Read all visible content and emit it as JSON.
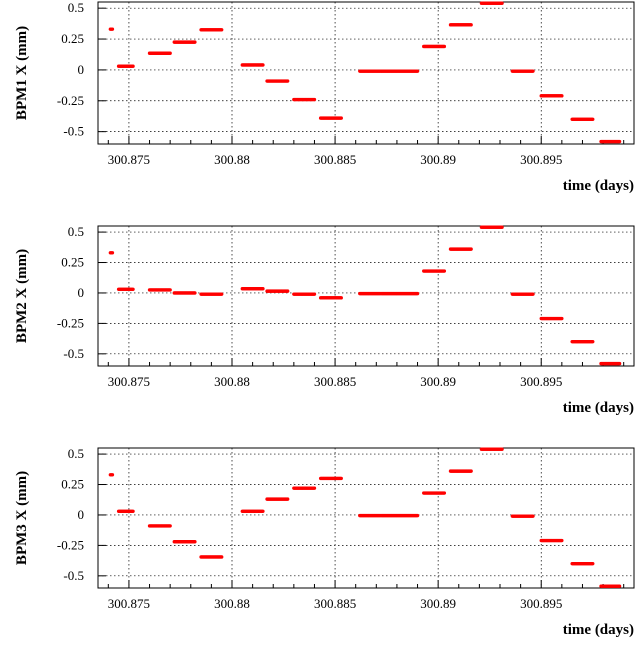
{
  "colors": {
    "points": "#ff0000",
    "axes": "#000000",
    "background": "#ffffff"
  },
  "chart_data": [
    {
      "type": "scatter",
      "ylabel": "BPM1 X (mm)",
      "xlabel": "time (days)",
      "xlim": [
        300.8735,
        300.8995
      ],
      "ylim": [
        -0.6,
        0.55
      ],
      "grid": true,
      "x_ticks": [
        300.875,
        300.88,
        300.885,
        300.89,
        300.895
      ],
      "x_tick_labels": [
        "300.875",
        "300.88",
        "300.885",
        "300.89",
        "300.895"
      ],
      "y_ticks": [
        0.5,
        0.25,
        0,
        -0.25,
        -0.5
      ],
      "y_tick_labels": [
        "0.5",
        "0.25",
        "0",
        "-0.25",
        "-0.5"
      ],
      "segments": [
        {
          "x_start": 300.8741,
          "x_end": 300.8742,
          "y": 0.33
        },
        {
          "x_start": 300.8745,
          "x_end": 300.8752,
          "y": 0.03
        },
        {
          "x_start": 300.876,
          "x_end": 300.877,
          "y": 0.135
        },
        {
          "x_start": 300.8772,
          "x_end": 300.8782,
          "y": 0.225
        },
        {
          "x_start": 300.8785,
          "x_end": 300.8795,
          "y": 0.325
        },
        {
          "x_start": 300.8805,
          "x_end": 300.8815,
          "y": 0.04
        },
        {
          "x_start": 300.8817,
          "x_end": 300.8827,
          "y": -0.09
        },
        {
          "x_start": 300.883,
          "x_end": 300.884,
          "y": -0.24
        },
        {
          "x_start": 300.8843,
          "x_end": 300.8853,
          "y": -0.39
        },
        {
          "x_start": 300.8862,
          "x_end": 300.889,
          "y": -0.01
        },
        {
          "x_start": 300.8893,
          "x_end": 300.8903,
          "y": 0.19
        },
        {
          "x_start": 300.8906,
          "x_end": 300.8916,
          "y": 0.365
        },
        {
          "x_start": 300.8921,
          "x_end": 300.8931,
          "y": 0.54
        },
        {
          "x_start": 300.8936,
          "x_end": 300.8946,
          "y": -0.01
        },
        {
          "x_start": 300.895,
          "x_end": 300.896,
          "y": -0.21
        },
        {
          "x_start": 300.8965,
          "x_end": 300.8975,
          "y": -0.4
        },
        {
          "x_start": 300.8979,
          "x_end": 300.8988,
          "y": -0.58
        }
      ]
    },
    {
      "type": "scatter",
      "ylabel": "BPM2 X (mm)",
      "xlabel": "time (days)",
      "xlim": [
        300.8735,
        300.8995
      ],
      "ylim": [
        -0.6,
        0.55
      ],
      "grid": true,
      "x_ticks": [
        300.875,
        300.88,
        300.885,
        300.89,
        300.895
      ],
      "x_tick_labels": [
        "300.875",
        "300.88",
        "300.885",
        "300.89",
        "300.895"
      ],
      "y_ticks": [
        0.5,
        0.25,
        0,
        -0.25,
        -0.5
      ],
      "y_tick_labels": [
        "0.5",
        "0.25",
        "0",
        "-0.25",
        "-0.5"
      ],
      "segments": [
        {
          "x_start": 300.8741,
          "x_end": 300.8742,
          "y": 0.33
        },
        {
          "x_start": 300.8745,
          "x_end": 300.8752,
          "y": 0.03
        },
        {
          "x_start": 300.876,
          "x_end": 300.877,
          "y": 0.025
        },
        {
          "x_start": 300.8772,
          "x_end": 300.8782,
          "y": 0.0
        },
        {
          "x_start": 300.8785,
          "x_end": 300.8795,
          "y": -0.01
        },
        {
          "x_start": 300.8805,
          "x_end": 300.8815,
          "y": 0.035
        },
        {
          "x_start": 300.8817,
          "x_end": 300.8827,
          "y": 0.015
        },
        {
          "x_start": 300.883,
          "x_end": 300.884,
          "y": -0.01
        },
        {
          "x_start": 300.8843,
          "x_end": 300.8853,
          "y": -0.04
        },
        {
          "x_start": 300.8862,
          "x_end": 300.889,
          "y": -0.005
        },
        {
          "x_start": 300.8893,
          "x_end": 300.8903,
          "y": 0.18
        },
        {
          "x_start": 300.8906,
          "x_end": 300.8916,
          "y": 0.36
        },
        {
          "x_start": 300.8921,
          "x_end": 300.8931,
          "y": 0.54
        },
        {
          "x_start": 300.8936,
          "x_end": 300.8946,
          "y": -0.01
        },
        {
          "x_start": 300.895,
          "x_end": 300.896,
          "y": -0.21
        },
        {
          "x_start": 300.8965,
          "x_end": 300.8975,
          "y": -0.4
        },
        {
          "x_start": 300.8979,
          "x_end": 300.8988,
          "y": -0.58
        }
      ]
    },
    {
      "type": "scatter",
      "ylabel": "BPM3 X (mm)",
      "xlabel": "time (days)",
      "xlim": [
        300.8735,
        300.8995
      ],
      "ylim": [
        -0.6,
        0.55
      ],
      "grid": true,
      "x_ticks": [
        300.875,
        300.88,
        300.885,
        300.89,
        300.895
      ],
      "x_tick_labels": [
        "300.875",
        "300.88",
        "300.885",
        "300.89",
        "300.895"
      ],
      "y_ticks": [
        0.5,
        0.25,
        0,
        -0.25,
        -0.5
      ],
      "y_tick_labels": [
        "0.5",
        "0.25",
        "0",
        "-0.25",
        "-0.5"
      ],
      "segments": [
        {
          "x_start": 300.8741,
          "x_end": 300.8742,
          "y": 0.33
        },
        {
          "x_start": 300.8745,
          "x_end": 300.8752,
          "y": 0.03
        },
        {
          "x_start": 300.876,
          "x_end": 300.877,
          "y": -0.09
        },
        {
          "x_start": 300.8772,
          "x_end": 300.8782,
          "y": -0.22
        },
        {
          "x_start": 300.8785,
          "x_end": 300.8795,
          "y": -0.345
        },
        {
          "x_start": 300.8805,
          "x_end": 300.8815,
          "y": 0.03
        },
        {
          "x_start": 300.8817,
          "x_end": 300.8827,
          "y": 0.13
        },
        {
          "x_start": 300.883,
          "x_end": 300.884,
          "y": 0.22
        },
        {
          "x_start": 300.8843,
          "x_end": 300.8853,
          "y": 0.3
        },
        {
          "x_start": 300.8862,
          "x_end": 300.889,
          "y": -0.005
        },
        {
          "x_start": 300.8893,
          "x_end": 300.8903,
          "y": 0.18
        },
        {
          "x_start": 300.8906,
          "x_end": 300.8916,
          "y": 0.36
        },
        {
          "x_start": 300.8921,
          "x_end": 300.8931,
          "y": 0.54
        },
        {
          "x_start": 300.8936,
          "x_end": 300.8946,
          "y": -0.01
        },
        {
          "x_start": 300.895,
          "x_end": 300.896,
          "y": -0.21
        },
        {
          "x_start": 300.8965,
          "x_end": 300.8975,
          "y": -0.4
        },
        {
          "x_start": 300.8979,
          "x_end": 300.8988,
          "y": -0.585
        }
      ]
    }
  ]
}
